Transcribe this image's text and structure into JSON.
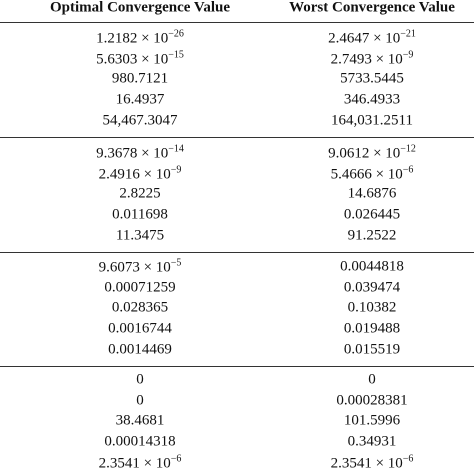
{
  "table": {
    "header": [
      "Optimal Convergence Value",
      "Worst Convergence Value"
    ],
    "groups": [
      [
        [
          {
            "text": "1.2182 × 10",
            "sup": "−26"
          },
          {
            "text": "2.4647 × 10",
            "sup": "−21"
          }
        ],
        [
          {
            "text": "5.6303 × 10",
            "sup": "−15"
          },
          {
            "text": "2.7493 × 10",
            "sup": "−9"
          }
        ],
        [
          {
            "text": "980.7121"
          },
          {
            "text": "5733.5445"
          }
        ],
        [
          {
            "text": "16.4937"
          },
          {
            "text": "346.4933"
          }
        ],
        [
          {
            "text": "54,467.3047"
          },
          {
            "text": "164,031.2511"
          }
        ]
      ],
      [
        [
          {
            "text": "9.3678 × 10",
            "sup": "−14"
          },
          {
            "text": "9.0612 × 10",
            "sup": "−12"
          }
        ],
        [
          {
            "text": "2.4916 × 10",
            "sup": "−9"
          },
          {
            "text": "5.4666 × 10",
            "sup": "−6"
          }
        ],
        [
          {
            "text": "2.8225"
          },
          {
            "text": "14.6876"
          }
        ],
        [
          {
            "text": "0.011698"
          },
          {
            "text": "0.026445"
          }
        ],
        [
          {
            "text": "11.3475"
          },
          {
            "text": "91.2522"
          }
        ]
      ],
      [
        [
          {
            "text": "9.6073 × 10",
            "sup": "−5"
          },
          {
            "text": "0.0044818"
          }
        ],
        [
          {
            "text": "0.00071259"
          },
          {
            "text": "0.039474"
          }
        ],
        [
          {
            "text": "0.028365"
          },
          {
            "text": "0.10382"
          }
        ],
        [
          {
            "text": "0.0016744"
          },
          {
            "text": "0.019488"
          }
        ],
        [
          {
            "text": "0.0014469"
          },
          {
            "text": "0.015519"
          }
        ]
      ],
      [
        [
          {
            "text": "0"
          },
          {
            "text": "0"
          }
        ],
        [
          {
            "text": "0"
          },
          {
            "text": "0.00028381"
          }
        ],
        [
          {
            "text": "38.4681"
          },
          {
            "text": "101.5996"
          }
        ],
        [
          {
            "text": "0.00014318"
          },
          {
            "text": "0.34931"
          }
        ],
        [
          {
            "text": "2.3541 × 10",
            "sup": "−6"
          },
          {
            "text": "2.3541 × 10",
            "sup": "−6"
          }
        ]
      ]
    ]
  }
}
